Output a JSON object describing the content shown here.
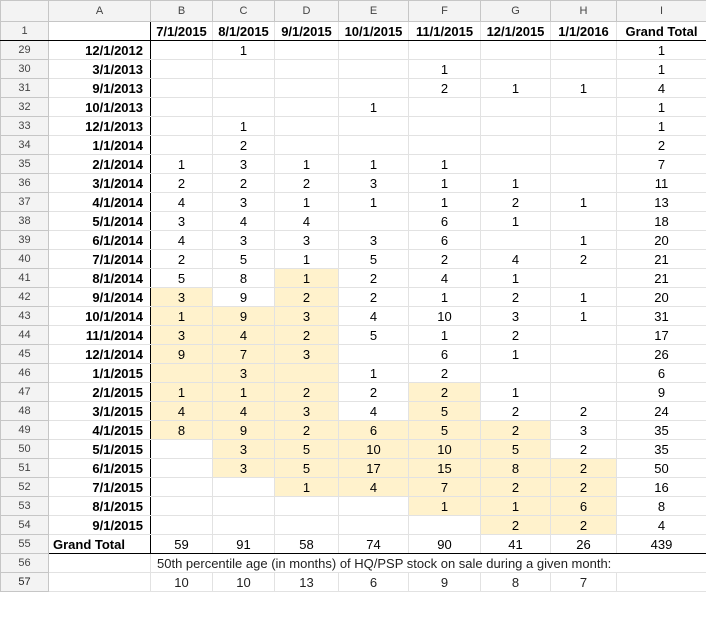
{
  "columns": [
    "A",
    "B",
    "C",
    "D",
    "E",
    "F",
    "G",
    "H",
    "I"
  ],
  "header_row_number": "1",
  "header_labels": [
    "",
    "7/1/2015",
    "8/1/2015",
    "9/1/2015",
    "10/1/2015",
    "11/1/2015",
    "12/1/2015",
    "1/1/2016",
    "Grand Total"
  ],
  "rows": [
    {
      "n": "29",
      "date": "12/1/2012",
      "v": [
        "",
        "1",
        "",
        "",
        "",
        "",
        ""
      ],
      "hl": [
        0,
        0,
        0,
        0,
        0,
        0,
        0
      ],
      "total": "1"
    },
    {
      "n": "30",
      "date": "3/1/2013",
      "v": [
        "",
        "",
        "",
        "",
        "1",
        "",
        ""
      ],
      "hl": [
        0,
        0,
        0,
        0,
        0,
        0,
        0
      ],
      "total": "1"
    },
    {
      "n": "31",
      "date": "9/1/2013",
      "v": [
        "",
        "",
        "",
        "",
        "2",
        "1",
        "1"
      ],
      "hl": [
        0,
        0,
        0,
        0,
        0,
        0,
        0
      ],
      "total": "4"
    },
    {
      "n": "32",
      "date": "10/1/2013",
      "v": [
        "",
        "",
        "",
        "1",
        "",
        "",
        ""
      ],
      "hl": [
        0,
        0,
        0,
        0,
        0,
        0,
        0
      ],
      "total": "1"
    },
    {
      "n": "33",
      "date": "12/1/2013",
      "v": [
        "",
        "1",
        "",
        "",
        "",
        "",
        ""
      ],
      "hl": [
        0,
        0,
        0,
        0,
        0,
        0,
        0
      ],
      "total": "1"
    },
    {
      "n": "34",
      "date": "1/1/2014",
      "v": [
        "",
        "2",
        "",
        "",
        "",
        "",
        ""
      ],
      "hl": [
        0,
        0,
        0,
        0,
        0,
        0,
        0
      ],
      "total": "2"
    },
    {
      "n": "35",
      "date": "2/1/2014",
      "v": [
        "1",
        "3",
        "1",
        "1",
        "1",
        "",
        ""
      ],
      "hl": [
        0,
        0,
        0,
        0,
        0,
        0,
        0
      ],
      "total": "7"
    },
    {
      "n": "36",
      "date": "3/1/2014",
      "v": [
        "2",
        "2",
        "2",
        "3",
        "1",
        "1",
        ""
      ],
      "hl": [
        0,
        0,
        0,
        0,
        0,
        0,
        0
      ],
      "total": "11"
    },
    {
      "n": "37",
      "date": "4/1/2014",
      "v": [
        "4",
        "3",
        "1",
        "1",
        "1",
        "2",
        "1"
      ],
      "hl": [
        0,
        0,
        0,
        0,
        0,
        0,
        0
      ],
      "total": "13"
    },
    {
      "n": "38",
      "date": "5/1/2014",
      "v": [
        "3",
        "4",
        "4",
        "",
        "6",
        "1",
        ""
      ],
      "hl": [
        0,
        0,
        0,
        0,
        0,
        0,
        0
      ],
      "total": "18"
    },
    {
      "n": "39",
      "date": "6/1/2014",
      "v": [
        "4",
        "3",
        "3",
        "3",
        "6",
        "",
        "1"
      ],
      "hl": [
        0,
        0,
        0,
        0,
        0,
        0,
        0
      ],
      "total": "20"
    },
    {
      "n": "40",
      "date": "7/1/2014",
      "v": [
        "2",
        "5",
        "1",
        "5",
        "2",
        "4",
        "2"
      ],
      "hl": [
        0,
        0,
        0,
        0,
        0,
        0,
        0
      ],
      "total": "21"
    },
    {
      "n": "41",
      "date": "8/1/2014",
      "v": [
        "5",
        "8",
        "1",
        "2",
        "4",
        "1",
        ""
      ],
      "hl": [
        0,
        0,
        1,
        0,
        0,
        0,
        0
      ],
      "total": "21"
    },
    {
      "n": "42",
      "date": "9/1/2014",
      "v": [
        "3",
        "9",
        "2",
        "2",
        "1",
        "2",
        "1"
      ],
      "hl": [
        1,
        0,
        1,
        0,
        0,
        0,
        0
      ],
      "total": "20"
    },
    {
      "n": "43",
      "date": "10/1/2014",
      "v": [
        "1",
        "9",
        "3",
        "4",
        "10",
        "3",
        "1"
      ],
      "hl": [
        1,
        1,
        1,
        0,
        0,
        0,
        0
      ],
      "total": "31"
    },
    {
      "n": "44",
      "date": "11/1/2014",
      "v": [
        "3",
        "4",
        "2",
        "5",
        "1",
        "2",
        ""
      ],
      "hl": [
        1,
        1,
        1,
        0,
        0,
        0,
        0
      ],
      "total": "17"
    },
    {
      "n": "45",
      "date": "12/1/2014",
      "v": [
        "9",
        "7",
        "3",
        "",
        "6",
        "1",
        ""
      ],
      "hl": [
        1,
        1,
        1,
        0,
        0,
        0,
        0
      ],
      "total": "26"
    },
    {
      "n": "46",
      "date": "1/1/2015",
      "v": [
        "",
        "3",
        "",
        "1",
        "2",
        "",
        ""
      ],
      "hl": [
        1,
        1,
        1,
        0,
        0,
        0,
        0
      ],
      "total": "6"
    },
    {
      "n": "47",
      "date": "2/1/2015",
      "v": [
        "1",
        "1",
        "2",
        "2",
        "2",
        "1",
        ""
      ],
      "hl": [
        1,
        1,
        1,
        0,
        1,
        0,
        0
      ],
      "total": "9"
    },
    {
      "n": "48",
      "date": "3/1/2015",
      "v": [
        "4",
        "4",
        "3",
        "4",
        "5",
        "2",
        "2"
      ],
      "hl": [
        1,
        1,
        1,
        0,
        1,
        0,
        0
      ],
      "total": "24"
    },
    {
      "n": "49",
      "date": "4/1/2015",
      "v": [
        "8",
        "9",
        "2",
        "6",
        "5",
        "2",
        "3"
      ],
      "hl": [
        1,
        1,
        1,
        1,
        1,
        1,
        0
      ],
      "total": "35"
    },
    {
      "n": "50",
      "date": "5/1/2015",
      "v": [
        "",
        "3",
        "5",
        "10",
        "10",
        "5",
        "2"
      ],
      "hl": [
        0,
        1,
        1,
        1,
        1,
        1,
        0
      ],
      "total": "35"
    },
    {
      "n": "51",
      "date": "6/1/2015",
      "v": [
        "",
        "3",
        "5",
        "17",
        "15",
        "8",
        "2"
      ],
      "hl": [
        0,
        1,
        1,
        1,
        1,
        1,
        1
      ],
      "total": "50"
    },
    {
      "n": "52",
      "date": "7/1/2015",
      "v": [
        "",
        "",
        "1",
        "4",
        "7",
        "2",
        "2"
      ],
      "hl": [
        0,
        0,
        1,
        1,
        1,
        1,
        1
      ],
      "total": "16"
    },
    {
      "n": "53",
      "date": "8/1/2015",
      "v": [
        "",
        "",
        "",
        "",
        "1",
        "1",
        "6"
      ],
      "hl": [
        0,
        0,
        0,
        0,
        1,
        1,
        1
      ],
      "total": "8"
    },
    {
      "n": "54",
      "date": "9/1/2015",
      "v": [
        "",
        "",
        "",
        "",
        "",
        "2",
        "2"
      ],
      "hl": [
        0,
        0,
        0,
        0,
        0,
        1,
        1
      ],
      "total": "4"
    }
  ],
  "grand_total_row": {
    "n": "55",
    "label": "Grand Total",
    "v": [
      "59",
      "91",
      "58",
      "74",
      "90",
      "41",
      "26"
    ],
    "total": "439"
  },
  "note_row": {
    "n": "56",
    "text": "50th percentile age (in months) of HQ/PSP stock on sale during a given month:"
  },
  "median_row": {
    "n": "57",
    "v": [
      "10",
      "10",
      "13",
      "6",
      "9",
      "8",
      "7"
    ]
  },
  "colors": {
    "highlight": "#fff2cc",
    "header_bg": "#f3f3f3",
    "gridline": "#e2e2e2"
  }
}
